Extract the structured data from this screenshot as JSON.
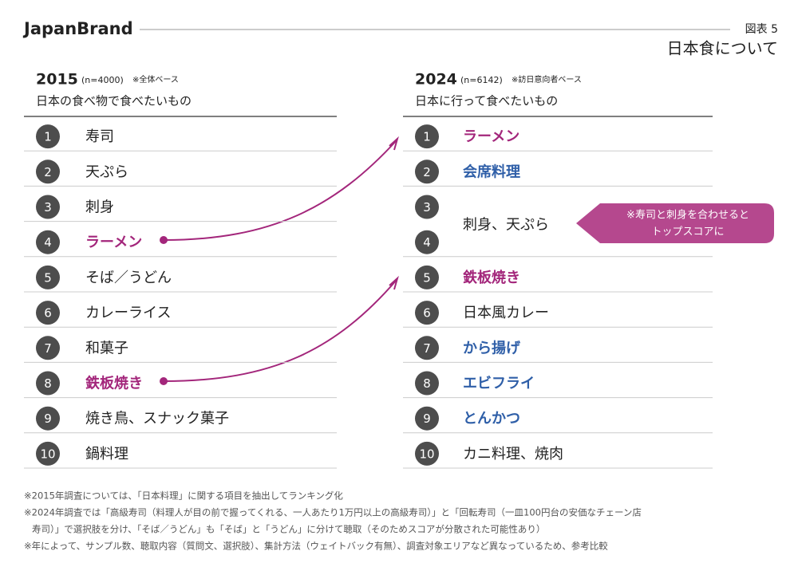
{
  "header": {
    "brand": "JapanBrand",
    "figure_label": "図表 5",
    "title": "日本食について"
  },
  "left": {
    "year": "2015",
    "n": "(n=4000)",
    "base": "※全体ベース",
    "subtitle": "日本の食べ物で食べたいもの",
    "items": [
      {
        "ranks": [
          1
        ],
        "label": "寿司"
      },
      {
        "ranks": [
          2
        ],
        "label": "天ぷら"
      },
      {
        "ranks": [
          3
        ],
        "label": "刺身"
      },
      {
        "ranks": [
          4
        ],
        "label": "ラーメン",
        "color": "#a3267b"
      },
      {
        "ranks": [
          5
        ],
        "label": "そば／うどん"
      },
      {
        "ranks": [
          6
        ],
        "label": "カレーライス"
      },
      {
        "ranks": [
          7
        ],
        "label": "和菓子"
      },
      {
        "ranks": [
          8
        ],
        "label": "鉄板焼き",
        "color": "#a3267b"
      },
      {
        "ranks": [
          9
        ],
        "label": "焼き鳥、スナック菓子"
      },
      {
        "ranks": [
          10
        ],
        "label": "鍋料理"
      }
    ]
  },
  "right": {
    "year": "2024",
    "n": "(n=6142)",
    "base": "※訪日意向者ベース",
    "subtitle": "日本に行って食べたいもの",
    "items": [
      {
        "ranks": [
          1
        ],
        "label": "ラーメン",
        "color": "#a3267b"
      },
      {
        "ranks": [
          2
        ],
        "label": "会席料理",
        "color": "#2f5fa8"
      },
      {
        "ranks": [
          3,
          4
        ],
        "label": "刺身、天ぷら"
      },
      {
        "ranks": [
          5
        ],
        "label": "鉄板焼き",
        "color": "#a3267b"
      },
      {
        "ranks": [
          6
        ],
        "label": "日本風カレー"
      },
      {
        "ranks": [
          7
        ],
        "label": "から揚げ",
        "color": "#2f5fa8"
      },
      {
        "ranks": [
          8
        ],
        "label": "エビフライ",
        "color": "#2f5fa8"
      },
      {
        "ranks": [
          9
        ],
        "label": "とんかつ",
        "color": "#2f5fa8"
      },
      {
        "ranks": [
          10
        ],
        "label": "カニ料理、焼肉"
      }
    ]
  },
  "callout": [
    "※寿司と刺身を合わせると",
    "トップスコアに"
  ],
  "notes": [
    [
      "※2015年調査については、「日本料理」に関する項目を抽出してランキング化"
    ],
    [
      "※2024年調査では「高級寿司（料理人が目の前で握ってくれる、一人あたり1万円以上の高級寿司）」と「回転寿司（一皿100円台の安価なチェーン店",
      "寿司）」で選択肢を分け、「そば／うどん」も「そば」と「うどん」に分けて聴取（そのためスコアが分散された可能性あり）"
    ],
    [
      "※年によって、サンプル数、聴取内容（質問文、選択肢）、集計方法（ウェイトバック有無）、調査対象エリアなど異なっているため、参考比較"
    ]
  ]
}
